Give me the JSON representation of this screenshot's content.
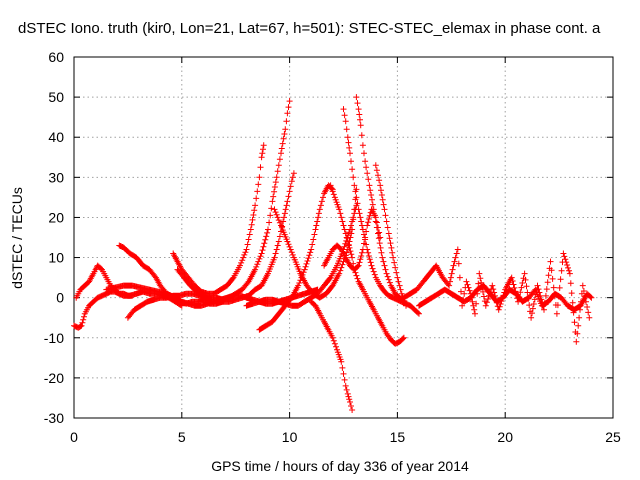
{
  "chart_data": {
    "type": "scatter",
    "title": "dSTEC Iono. truth (kir0, Lon=21, Lat=67, h=501): STEC-STEC_elemax in phase cont. a",
    "xlabel": "GPS time / hours of day 336 of year 2014",
    "ylabel": "dSTEC  / TECUs",
    "xlim": [
      0,
      25
    ],
    "ylim": [
      -30,
      60
    ],
    "xticks": [
      "0",
      "5",
      "10",
      "15",
      "20",
      "25"
    ],
    "yticks": [
      "60",
      "50",
      "40",
      "30",
      "20",
      "10",
      "0",
      "-10",
      "-20",
      "-30"
    ],
    "grid": true,
    "marker": "+",
    "color": "#ff0000",
    "series": [
      {
        "x": [
          0.0,
          0.2,
          0.35,
          0.5,
          0.7,
          0.9,
          1.1,
          1.3,
          1.5,
          1.7,
          1.9,
          2.1,
          2.3,
          2.5,
          2.7
        ],
        "y": [
          -7,
          -7.5,
          -7,
          -4,
          -2,
          -1,
          0,
          0.5,
          1,
          1.5,
          1.5,
          1,
          1,
          0.5,
          0.5
        ]
      },
      {
        "x": [
          0.1,
          0.3,
          0.5,
          0.7,
          0.9,
          1.0,
          1.1,
          1.3,
          1.5,
          1.7,
          1.9,
          2.1,
          2.3,
          2.6,
          2.9,
          3.2,
          3.5,
          3.8,
          4.1,
          4.4,
          4.7,
          5.0
        ],
        "y": [
          0,
          2,
          3,
          4,
          6,
          7,
          8,
          7,
          5,
          3,
          2,
          1,
          0.5,
          0.5,
          1,
          1.5,
          1,
          1,
          0.5,
          0,
          -1,
          -2
        ]
      },
      {
        "x": [
          2.1,
          2.3,
          2.6,
          2.9,
          3.2,
          3.5,
          3.8,
          4.0,
          4.3,
          4.6,
          4.9,
          5.2,
          5.5,
          5.8,
          6.1
        ],
        "y": [
          13,
          12.5,
          11,
          10,
          8,
          7,
          5,
          3,
          1,
          0,
          -1,
          -1.5,
          -1,
          -1,
          0
        ]
      },
      {
        "x": [
          2.5,
          2.8,
          3.1,
          3.4,
          3.7,
          4.0,
          4.3,
          4.6,
          4.9,
          5.2,
          5.5,
          5.8,
          6.1,
          6.4
        ],
        "y": [
          -5,
          -3,
          -2,
          -1,
          -0.5,
          0,
          0,
          0.5,
          0.5,
          1,
          1,
          0.5,
          0,
          -0.5
        ]
      },
      {
        "x": [
          1.5,
          1.9,
          2.3,
          2.7,
          3.1,
          3.5,
          3.9,
          4.3,
          4.7,
          5.0,
          5.3,
          5.6,
          5.9,
          6.2,
          6.5,
          6.8,
          7.1,
          7.4,
          7.7,
          8.0,
          8.3,
          8.6,
          8.9,
          9.2,
          9.5,
          9.8,
          10.1,
          10.4,
          10.7,
          11.0,
          11.3
        ],
        "y": [
          2,
          2.5,
          3,
          3,
          2.5,
          2,
          1.5,
          1,
          0,
          -1,
          -1.5,
          -2,
          -2,
          -1.5,
          -1,
          -0.5,
          0,
          0.5,
          0.5,
          0,
          -0.5,
          -1,
          -1.5,
          -1.5,
          -1,
          -0.5,
          0,
          0.5,
          1,
          1.5,
          2
        ]
      },
      {
        "x": [
          4.6,
          4.8,
          5.0,
          5.3,
          5.6,
          5.9,
          6.2,
          6.5,
          6.8,
          7.1,
          7.4,
          7.7,
          8.0,
          8.2,
          8.4,
          8.6,
          8.7,
          8.8
        ],
        "y": [
          11,
          9,
          7,
          5,
          3,
          1.5,
          1,
          1,
          2,
          3,
          5,
          8,
          12,
          17,
          23,
          30,
          35,
          38
        ]
      },
      {
        "x": [
          4.8,
          5.1,
          5.4,
          5.7,
          6.0,
          6.3,
          6.6,
          6.9,
          7.2,
          7.5,
          7.8,
          8.1,
          8.4,
          8.7,
          9.0,
          9.2,
          9.4,
          9.6,
          9.8,
          9.9,
          10.0
        ],
        "y": [
          7,
          5,
          3,
          1.5,
          0.5,
          0,
          0,
          -0.5,
          0,
          1,
          2,
          4,
          7,
          11,
          17,
          24,
          30,
          36,
          42,
          46,
          49
        ]
      },
      {
        "x": [
          6.0,
          6.3,
          6.6,
          6.9,
          7.2,
          7.5,
          7.8,
          8.1,
          8.4,
          8.7,
          9.0,
          9.3,
          9.5,
          9.7,
          9.9,
          10.1,
          10.2
        ],
        "y": [
          -1,
          -1.5,
          -1.5,
          -1,
          -1,
          -0.5,
          0,
          0.5,
          2,
          3,
          6,
          10,
          14,
          19,
          24,
          29,
          31
        ]
      },
      {
        "x": [
          8.6,
          8.9,
          9.2,
          9.5,
          9.8,
          10.1,
          10.4,
          10.7,
          11.0,
          11.2,
          11.4,
          11.6,
          11.8,
          12.0
        ],
        "y": [
          -8,
          -7,
          -6,
          -4,
          -2,
          0,
          3,
          7,
          12,
          17,
          22,
          26,
          28,
          27
        ]
      },
      {
        "x": [
          8.0,
          8.3,
          8.6,
          8.9,
          9.2,
          9.5,
          9.8,
          10.1,
          10.4,
          10.7,
          11.0,
          11.3,
          11.6,
          11.9,
          12.2,
          12.5,
          12.8,
          13.1
        ],
        "y": [
          -2,
          -1.5,
          -1,
          -0.5,
          -0.5,
          -1,
          -1.5,
          -2,
          -2,
          -1,
          0,
          1,
          3,
          5,
          8,
          12,
          17,
          23
        ]
      },
      {
        "x": [
          9.3,
          9.6,
          9.9,
          10.2,
          10.5,
          10.8,
          11.1,
          11.4,
          11.7,
          12.0,
          12.3,
          12.5,
          12.7,
          12.9,
          13.0,
          13.1
        ],
        "y": [
          22,
          18,
          14,
          10,
          6,
          3,
          1,
          0,
          1,
          3,
          6,
          9,
          12,
          17,
          22,
          27
        ]
      },
      {
        "x": [
          11.6,
          11.8,
          12.0,
          12.2,
          12.4,
          12.6,
          12.8,
          13.0,
          13.2,
          13.4,
          13.6,
          13.8,
          14.0,
          14.2
        ],
        "y": [
          8,
          10,
          12,
          13,
          12,
          10,
          8,
          7,
          8,
          12,
          18,
          22,
          20,
          15
        ]
      },
      {
        "x": [
          11.9,
          12.1,
          12.3,
          12.5,
          12.7,
          12.9,
          13.0,
          13.2,
          13.4,
          13.5,
          13.7,
          13.9,
          14.1,
          14.3,
          14.5,
          14.7,
          14.9,
          15.1,
          15.3
        ],
        "y": [
          28,
          25,
          22,
          18,
          14,
          10,
          7,
          4,
          2,
          1,
          -1,
          -3,
          -5,
          -7,
          -9,
          -10.5,
          -11.5,
          -11,
          -10
        ]
      },
      {
        "x": [
          12.5,
          12.6,
          12.7,
          12.8,
          12.9,
          13.0,
          13.2,
          13.4,
          13.6,
          13.8,
          14.0,
          14.2,
          14.4,
          14.6,
          14.8,
          15.0,
          15.2,
          15.4,
          15.6,
          15.8,
          16.0
        ],
        "y": [
          47,
          44,
          40,
          36,
          32,
          28,
          22,
          17,
          12,
          8,
          5,
          3,
          1.5,
          0.5,
          0,
          -0.5,
          -1,
          -1.5,
          -2,
          -3,
          -4
        ]
      },
      {
        "x": [
          13.1,
          13.2,
          13.3,
          13.4,
          13.5,
          13.7,
          13.9,
          14.1,
          14.3,
          14.5,
          14.7,
          14.9,
          15.1,
          15.3
        ],
        "y": [
          50,
          47,
          43,
          38,
          34,
          28,
          22,
          16,
          10,
          6,
          3,
          1,
          0,
          -1
        ]
      },
      {
        "x": [
          14.0,
          14.2,
          14.4,
          14.6,
          14.8,
          15.0,
          15.2,
          15.4
        ],
        "y": [
          33,
          28,
          22,
          16,
          10,
          5,
          1,
          -2
        ]
      },
      {
        "x": [
          11.0,
          11.2,
          11.4,
          11.6,
          11.8,
          12.0,
          12.2,
          12.4,
          12.5,
          12.6,
          12.7,
          12.8,
          12.9
        ],
        "y": [
          -1,
          -2,
          -4,
          -6,
          -8,
          -10,
          -13,
          -16,
          -19,
          -22,
          -24,
          -26,
          -28
        ]
      },
      {
        "x": [
          15.3,
          15.6,
          15.9,
          16.2,
          16.5,
          16.8,
          17.1,
          17.4,
          17.6,
          17.8,
          18.0,
          18.2,
          18.4,
          18.6,
          18.8,
          19.1,
          19.4,
          19.7,
          20.0,
          20.3,
          20.6,
          20.9,
          21.2,
          21.5,
          21.8,
          22.1,
          22.4,
          22.7,
          23.0,
          23.3,
          23.6,
          23.9
        ],
        "y": [
          0,
          1,
          2,
          4,
          6,
          8,
          5,
          3,
          8,
          12,
          -2,
          4,
          1,
          -4,
          6,
          -2,
          3,
          -3,
          2,
          5,
          -1,
          6,
          -5,
          3,
          -3,
          9,
          -4,
          11,
          6,
          -11,
          3,
          -5
        ]
      },
      {
        "x": [
          16.0,
          16.3,
          16.6,
          16.9,
          17.2,
          17.5,
          17.8,
          18.1,
          18.4,
          18.7,
          19.0,
          19.3,
          19.6,
          19.9,
          20.2,
          20.5,
          20.8,
          21.1,
          21.4,
          21.7,
          22.0,
          22.3,
          22.6,
          22.9,
          23.2,
          23.5,
          23.8,
          24.0
        ],
        "y": [
          -2,
          -1,
          0,
          1,
          2,
          1,
          0,
          -1,
          0,
          2,
          3,
          1,
          -1,
          0,
          2,
          1,
          -1,
          0,
          2,
          -2,
          -1,
          1,
          0,
          -2,
          -3,
          -2,
          1,
          0
        ]
      }
    ]
  }
}
